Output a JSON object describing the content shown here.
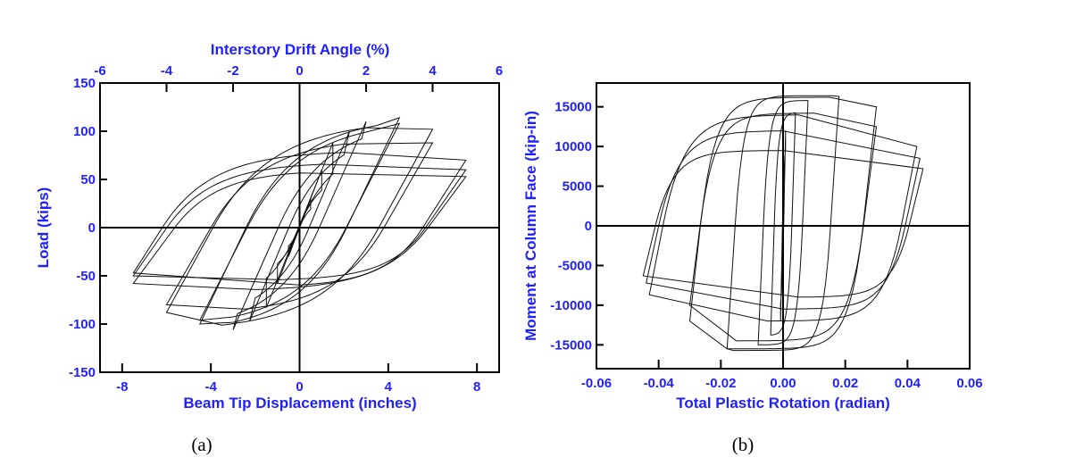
{
  "chart_data": [
    {
      "type": "line",
      "panel_label": "(a)",
      "xlabel": "Beam Tip Displacement (inches)",
      "ylabel": "Load (kips)",
      "x2label": "Interstory Drift Angle (%)",
      "xlim": [
        -9,
        9
      ],
      "ylim": [
        -150,
        150
      ],
      "x2lim": [
        -6,
        6
      ],
      "xticks": [
        -8,
        -4,
        0,
        4,
        8
      ],
      "yticks": [
        -150,
        -100,
        -50,
        0,
        50,
        100,
        150
      ],
      "x2ticks": [
        -6,
        -4,
        -2,
        0,
        2,
        4,
        6
      ],
      "grid": false,
      "zero_lines": true,
      "line_color": "#111111",
      "label_color": "#1f1fff",
      "loops": [
        {
          "d": 0.5,
          "peak_pos": 30,
          "peak_neg": -30,
          "max_pos": 30,
          "max_pos_at": 0.5,
          "min_neg": -30,
          "min_neg_at": -0.5,
          "stiffness": 60
        },
        {
          "d": 1.0,
          "peak_pos": 60,
          "peak_neg": -58,
          "max_pos": 60,
          "max_pos_at": 1.0,
          "min_neg": -58,
          "min_neg_at": -1.0,
          "stiffness": 60
        },
        {
          "d": 1.5,
          "peak_pos": 88,
          "peak_neg": -83,
          "max_pos": 88,
          "max_pos_at": 1.5,
          "min_neg": -83,
          "min_neg_at": -1.5,
          "stiffness": 57
        },
        {
          "d": 2.25,
          "peak_pos": 100,
          "peak_neg": -97,
          "max_pos": 102,
          "max_pos_at": 2.0,
          "min_neg": -98,
          "min_neg_at": -2.0,
          "stiffness": 55
        },
        {
          "d": 3.0,
          "peak_pos": 110,
          "peak_neg": -106,
          "max_pos": 111,
          "max_pos_at": 2.8,
          "min_neg": -107,
          "min_neg_at": -2.8,
          "stiffness": 52
        },
        {
          "d": 4.5,
          "peak_pos": 114,
          "peak_neg": -100,
          "max_pos": 116,
          "max_pos_at": 3.5,
          "min_neg": -110,
          "min_neg_at": -3.0,
          "stiffness": 48
        },
        {
          "d": 4.5,
          "peak_pos": 108,
          "peak_neg": -96,
          "max_pos": 112,
          "max_pos_at": 3.0,
          "min_neg": -104,
          "min_neg_at": -3.0,
          "stiffness": 45
        },
        {
          "d": 6.0,
          "peak_pos": 102,
          "peak_neg": -88,
          "max_pos": 112,
          "max_pos_at": 3.0,
          "min_neg": -108,
          "min_neg_at": -3.5,
          "stiffness": 42
        },
        {
          "d": 6.0,
          "peak_pos": 88,
          "peak_neg": -80,
          "max_pos": 94,
          "max_pos_at": 2.0,
          "min_neg": -90,
          "min_neg_at": -2.5,
          "stiffness": 40
        },
        {
          "d": 7.5,
          "peak_pos": 70,
          "peak_neg": -47,
          "max_pos": 80,
          "max_pos_at": 2.0,
          "min_neg": -62,
          "min_neg_at": 0.0,
          "stiffness": 36
        },
        {
          "d": 7.5,
          "peak_pos": 60,
          "peak_neg": -50,
          "max_pos": 68,
          "max_pos_at": 1.0,
          "min_neg": -55,
          "min_neg_at": -1.0,
          "stiffness": 33
        },
        {
          "d": 7.5,
          "peak_pos": 53,
          "peak_neg": -58,
          "max_pos": 60,
          "max_pos_at": 0.0,
          "min_neg": -66,
          "min_neg_at": -2.0,
          "stiffness": 31
        }
      ]
    },
    {
      "type": "line",
      "panel_label": "(b)",
      "xlabel": "Total Plastic Rotation (radian)",
      "ylabel": "Moment at Column Face (kip-in)",
      "xlim": [
        -0.06,
        0.06
      ],
      "ylim": [
        -18000,
        18000
      ],
      "xticks": [
        "-0.06",
        "-0.04",
        "-0.02",
        "0.00",
        "0.02",
        "0.04",
        "0.06"
      ],
      "yticks": [
        -15000,
        -10000,
        -5000,
        0,
        5000,
        10000,
        15000
      ],
      "grid": false,
      "zero_lines": true,
      "line_color": "#111111",
      "label_color": "#1f1fff",
      "loops": [
        {
          "d": 0.0008,
          "peak_pos": 12000,
          "peak_neg": -12000,
          "max_pos": 12000,
          "max_pos_at": 0.0008,
          "min_neg": -12000,
          "min_neg_at": -0.0008,
          "stiffness": 20000000
        },
        {
          "d": 0.004,
          "peak_pos": 14300,
          "peak_neg": -13800,
          "max_pos": 14300,
          "max_pos_at": 0.004,
          "min_neg": -13800,
          "min_neg_at": -0.004,
          "stiffness": 12000000
        },
        {
          "d": 0.008,
          "peak_pos": 15700,
          "peak_neg": -15000,
          "max_pos": 15800,
          "max_pos_at": 0.008,
          "min_neg": -15000,
          "min_neg_at": -0.008,
          "stiffness": 9000000
        },
        {
          "d": 0.018,
          "peak_pos": 16300,
          "peak_neg": -15500,
          "max_pos": 16400,
          "max_pos_at": 0.016,
          "min_neg": -15700,
          "min_neg_at": -0.016,
          "stiffness": 6000000
        },
        {
          "d": 0.03,
          "peak_pos": 15000,
          "peak_neg": -12000,
          "max_pos": 16200,
          "max_pos_at": 0.015,
          "min_neg": -15500,
          "min_neg_at": -0.018,
          "stiffness": 3500000
        },
        {
          "d": 0.03,
          "peak_pos": 12500,
          "peak_neg": -10000,
          "max_pos": 14200,
          "max_pos_at": 0.01,
          "min_neg": -14500,
          "min_neg_at": -0.015,
          "stiffness": 3000000
        },
        {
          "d": 0.043,
          "peak_pos": 10000,
          "peak_neg": -8700,
          "max_pos": 14000,
          "max_pos_at": 0.005,
          "min_neg": -12000,
          "min_neg_at": -0.005,
          "stiffness": 2000000
        },
        {
          "d": 0.044,
          "peak_pos": 8500,
          "peak_neg": -7200,
          "max_pos": 12000,
          "max_pos_at": 0.0,
          "min_neg": -10500,
          "min_neg_at": 0.0,
          "stiffness": 1800000
        },
        {
          "d": 0.045,
          "peak_pos": 7200,
          "peak_neg": -6300,
          "max_pos": 9500,
          "max_pos_at": 0.0,
          "min_neg": -9000,
          "min_neg_at": 0.005,
          "stiffness": 1600000
        }
      ]
    }
  ]
}
